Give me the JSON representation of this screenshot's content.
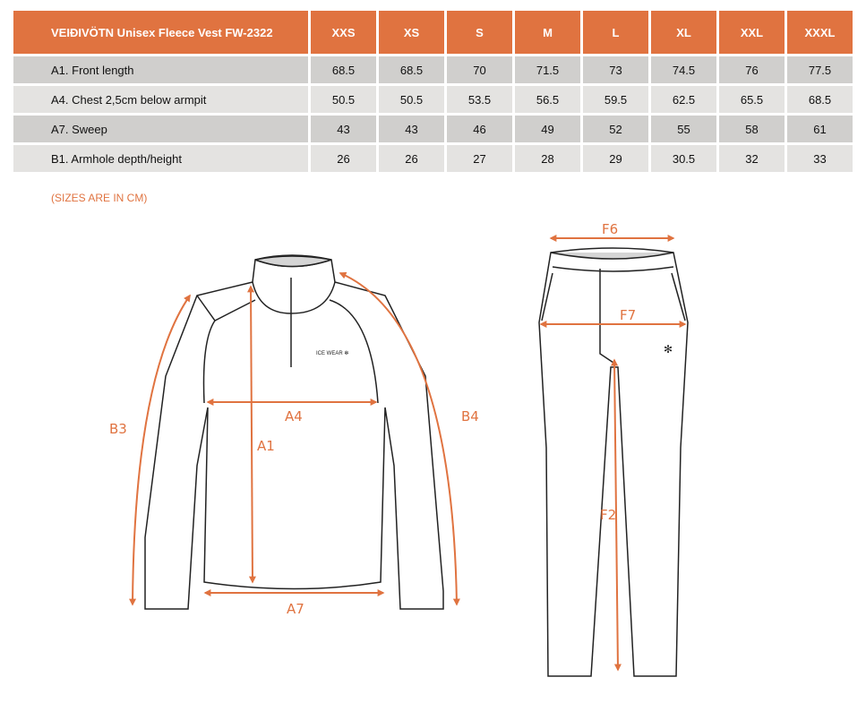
{
  "table": {
    "title": "VEIÐIVÖTN Unisex Fleece Vest FW-2322",
    "sizes": [
      "XXS",
      "XS",
      "S",
      "M",
      "L",
      "XL",
      "XXL",
      "XXXL"
    ],
    "rows": [
      {
        "label": "A1. Front length",
        "values": [
          "68.5",
          "68.5",
          "70",
          "71.5",
          "73",
          "74.5",
          "76",
          "77.5"
        ]
      },
      {
        "label": "A4. Chest 2,5cm below armpit",
        "values": [
          "50.5",
          "50.5",
          "53.5",
          "56.5",
          "59.5",
          "62.5",
          "65.5",
          "68.5"
        ]
      },
      {
        "label": "A7. Sweep",
        "values": [
          "43",
          "43",
          "46",
          "49",
          "52",
          "55",
          "58",
          "61"
        ]
      },
      {
        "label": "B1. Armhole depth/height",
        "values": [
          "26",
          "26",
          "27",
          "28",
          "29",
          "30.5",
          "32",
          "33"
        ]
      }
    ]
  },
  "note": "(SIZES ARE IN CM)",
  "diagram": {
    "labels": {
      "b3": "B3",
      "a4": "A4",
      "a1": "A1",
      "b4": "B4",
      "a7": "A7",
      "f6": "F6",
      "f7": "F7",
      "f2": "F2"
    },
    "logo": "ICE WEAR"
  },
  "colors": {
    "accent": "#e07340"
  }
}
